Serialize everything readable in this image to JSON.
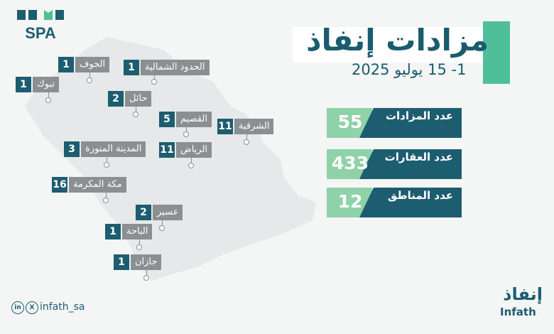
{
  "brand": {
    "spa_logo": "SPA",
    "name_ar": "إنفاذ",
    "name_en": "Infath",
    "social_handle": "infath_sa"
  },
  "title": "مزادات إنفاذ",
  "date_range": "1- 15 يوليو 2025",
  "stats": [
    {
      "label": "عدد المزادات",
      "value": "55"
    },
    {
      "label": "عدد العقارات",
      "value": "433"
    },
    {
      "label": "عدد المناطق",
      "value": "12"
    }
  ],
  "regions": [
    {
      "name": "الجوف",
      "count": "1"
    },
    {
      "name": "الحدود الشمالية",
      "count": "1"
    },
    {
      "name": "تبوك",
      "count": "1"
    },
    {
      "name": "حائل",
      "count": "2"
    },
    {
      "name": "القصيم",
      "count": "5"
    },
    {
      "name": "الشرقية",
      "count": "11"
    },
    {
      "name": "المدينة المنورة",
      "count": "3"
    },
    {
      "name": "الرياض",
      "count": "11"
    },
    {
      "name": "مكة المكرمة",
      "count": "16"
    },
    {
      "name": "عسير",
      "count": "2"
    },
    {
      "name": "الباحة",
      "count": "1"
    },
    {
      "name": "جازان",
      "count": "1"
    }
  ],
  "colors": {
    "teal_dark": "#1d5d70",
    "mint": "#8fd1a8",
    "green_accent": "#4fbf9a",
    "label_gray": "#8a8f92",
    "map_fill": "#e6e8e9"
  }
}
